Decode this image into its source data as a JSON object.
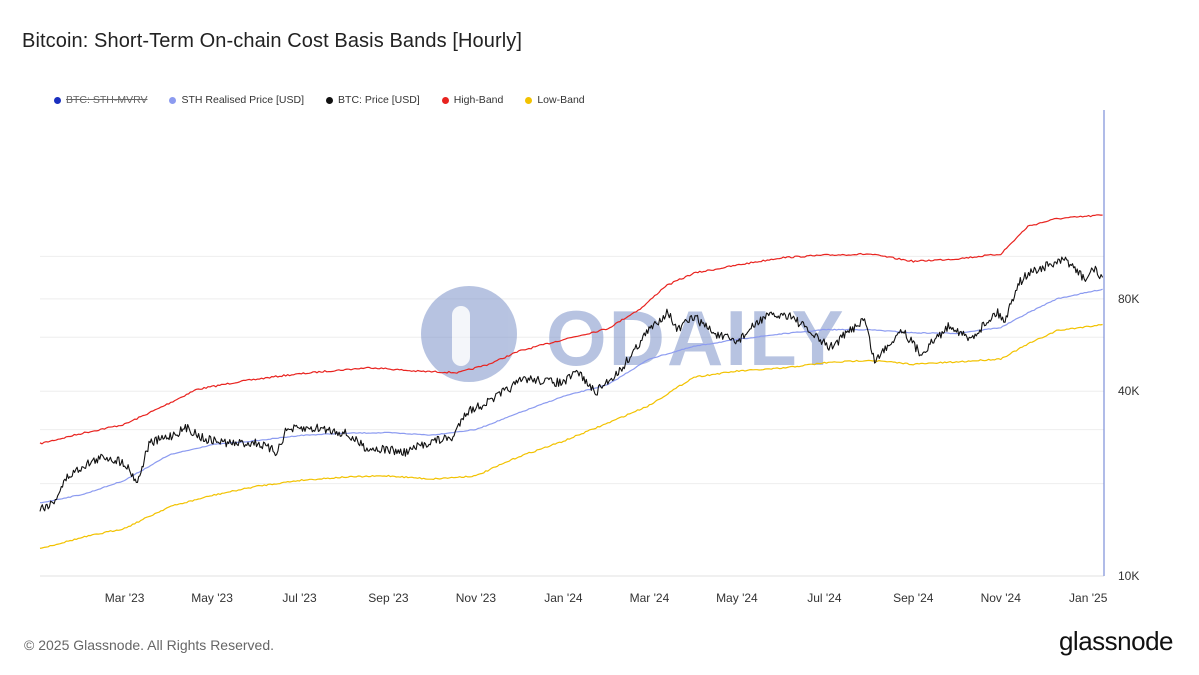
{
  "title": "Bitcoin: Short-Term On-chain Cost Basis Bands [Hourly]",
  "legend": [
    {
      "label": "BTC: STH-MVRV",
      "color": "#1a2fbf",
      "active": false
    },
    {
      "label": "STH Realised Price [USD]",
      "color": "#8c9bf0",
      "active": true
    },
    {
      "label": "BTC: Price [USD]",
      "color": "#111111",
      "active": true
    },
    {
      "label": "High-Band",
      "color": "#e8231f",
      "active": true
    },
    {
      "label": "Low-Band",
      "color": "#f2c200",
      "active": true
    }
  ],
  "watermark": "ODAILY",
  "footer": {
    "copyright": "© 2025 Glassnode. All Rights Reserved.",
    "brand": "glassnode"
  },
  "chart_data": {
    "type": "line",
    "title": "Bitcoin: Short-Term On-chain Cost Basis Bands [Hourly]",
    "y_scale": "log",
    "y_ticks": [
      {
        "value": 10000,
        "label": "10K"
      },
      {
        "value": 40000,
        "label": "40K"
      },
      {
        "value": 80000,
        "label": "80K"
      }
    ],
    "x_range": [
      "2023-01-01",
      "2025-01-12"
    ],
    "y_range": [
      10000,
      330000
    ],
    "x_ticks": [
      {
        "date": "2023-03-01",
        "label": "Mar '23"
      },
      {
        "date": "2023-05-01",
        "label": "May '23"
      },
      {
        "date": "2023-07-01",
        "label": "Jul '23"
      },
      {
        "date": "2023-09-01",
        "label": "Sep '23"
      },
      {
        "date": "2023-11-01",
        "label": "Nov '23"
      },
      {
        "date": "2024-01-01",
        "label": "Jan '24"
      },
      {
        "date": "2024-03-01",
        "label": "Mar '24"
      },
      {
        "date": "2024-05-01",
        "label": "May '24"
      },
      {
        "date": "2024-07-01",
        "label": "Jul '24"
      },
      {
        "date": "2024-09-01",
        "label": "Sep '24"
      },
      {
        "date": "2024-11-01",
        "label": "Nov '24"
      },
      {
        "date": "2025-01-01",
        "label": "Jan '25"
      }
    ],
    "grid": true,
    "legend_position": "top-left",
    "series": [
      {
        "name": "High-Band",
        "color": "#e8231f",
        "points": [
          [
            "2023-01-01",
            27000
          ],
          [
            "2023-02-01",
            29300
          ],
          [
            "2023-03-01",
            31200
          ],
          [
            "2023-03-25",
            35200
          ],
          [
            "2023-04-20",
            40500
          ],
          [
            "2023-05-20",
            43000
          ],
          [
            "2023-06-20",
            45000
          ],
          [
            "2023-07-20",
            46500
          ],
          [
            "2023-08-20",
            47800
          ],
          [
            "2023-09-20",
            46500
          ],
          [
            "2023-10-20",
            46000
          ],
          [
            "2023-11-10",
            49000
          ],
          [
            "2023-12-01",
            54000
          ],
          [
            "2024-01-01",
            59000
          ],
          [
            "2024-02-01",
            64000
          ],
          [
            "2024-02-25",
            75000
          ],
          [
            "2024-03-12",
            88000
          ],
          [
            "2024-04-01",
            97000
          ],
          [
            "2024-05-01",
            103000
          ],
          [
            "2024-06-01",
            109000
          ],
          [
            "2024-07-01",
            111000
          ],
          [
            "2024-08-01",
            112000
          ],
          [
            "2024-09-01",
            106000
          ],
          [
            "2024-10-01",
            108000
          ],
          [
            "2024-11-01",
            112000
          ],
          [
            "2024-11-20",
            138000
          ],
          [
            "2024-12-10",
            146000
          ],
          [
            "2025-01-11",
            150000
          ]
        ]
      },
      {
        "name": "STH Realised Price [USD]",
        "color": "#8c9bf0",
        "points": [
          [
            "2023-01-01",
            17300
          ],
          [
            "2023-02-01",
            18500
          ],
          [
            "2023-03-01",
            20500
          ],
          [
            "2023-04-01",
            24800
          ],
          [
            "2023-05-01",
            26800
          ],
          [
            "2023-06-01",
            27600
          ],
          [
            "2023-07-01",
            28700
          ],
          [
            "2023-08-01",
            29200
          ],
          [
            "2023-09-01",
            29300
          ],
          [
            "2023-10-01",
            28800
          ],
          [
            "2023-11-01",
            30000
          ],
          [
            "2023-12-01",
            34000
          ],
          [
            "2024-01-01",
            38500
          ],
          [
            "2024-02-01",
            42000
          ],
          [
            "2024-03-01",
            51000
          ],
          [
            "2024-04-01",
            56000
          ],
          [
            "2024-05-01",
            59000
          ],
          [
            "2024-06-01",
            61500
          ],
          [
            "2024-07-01",
            63500
          ],
          [
            "2024-08-01",
            63500
          ],
          [
            "2024-09-01",
            62000
          ],
          [
            "2024-10-01",
            61800
          ],
          [
            "2024-11-01",
            64500
          ],
          [
            "2024-11-20",
            72000
          ],
          [
            "2024-12-10",
            80000
          ],
          [
            "2025-01-11",
            86000
          ]
        ]
      },
      {
        "name": "Low-Band",
        "color": "#f2c200",
        "points": [
          [
            "2023-01-01",
            12300
          ],
          [
            "2023-02-01",
            13400
          ],
          [
            "2023-03-01",
            14300
          ],
          [
            "2023-04-01",
            16800
          ],
          [
            "2023-05-01",
            18300
          ],
          [
            "2023-06-01",
            19600
          ],
          [
            "2023-07-01",
            20500
          ],
          [
            "2023-08-01",
            21000
          ],
          [
            "2023-09-01",
            21200
          ],
          [
            "2023-10-01",
            20700
          ],
          [
            "2023-11-01",
            21200
          ],
          [
            "2023-12-01",
            24500
          ],
          [
            "2024-01-01",
            27500
          ],
          [
            "2024-02-01",
            31500
          ],
          [
            "2024-03-01",
            36000
          ],
          [
            "2024-04-01",
            44500
          ],
          [
            "2024-05-01",
            46500
          ],
          [
            "2024-06-01",
            47500
          ],
          [
            "2024-07-01",
            49500
          ],
          [
            "2024-08-01",
            50500
          ],
          [
            "2024-09-01",
            49000
          ],
          [
            "2024-10-01",
            49800
          ],
          [
            "2024-11-01",
            51000
          ],
          [
            "2024-11-20",
            57000
          ],
          [
            "2024-12-10",
            63000
          ],
          [
            "2025-01-11",
            66000
          ]
        ]
      },
      {
        "name": "BTC: Price [USD]",
        "color": "#111111",
        "points": [
          [
            "2023-01-01",
            16600
          ],
          [
            "2023-01-10",
            17300
          ],
          [
            "2023-01-20",
            21000
          ],
          [
            "2023-02-01",
            23000
          ],
          [
            "2023-02-15",
            24500
          ],
          [
            "2023-03-01",
            23400
          ],
          [
            "2023-03-10",
            20200
          ],
          [
            "2023-03-18",
            27000
          ],
          [
            "2023-04-01",
            28500
          ],
          [
            "2023-04-14",
            30400
          ],
          [
            "2023-04-25",
            28000
          ],
          [
            "2023-05-15",
            27000
          ],
          [
            "2023-06-01",
            27200
          ],
          [
            "2023-06-15",
            25300
          ],
          [
            "2023-06-22",
            30000
          ],
          [
            "2023-07-15",
            30300
          ],
          [
            "2023-08-01",
            29300
          ],
          [
            "2023-08-17",
            26100
          ],
          [
            "2023-09-01",
            25800
          ],
          [
            "2023-09-12",
            25200
          ],
          [
            "2023-10-01",
            27500
          ],
          [
            "2023-10-16",
            28200
          ],
          [
            "2023-10-24",
            34000
          ],
          [
            "2023-11-10",
            37000
          ],
          [
            "2023-12-05",
            44000
          ],
          [
            "2024-01-01",
            42500
          ],
          [
            "2024-01-11",
            46500
          ],
          [
            "2024-01-23",
            39500
          ],
          [
            "2024-02-10",
            47000
          ],
          [
            "2024-02-28",
            62000
          ],
          [
            "2024-03-14",
            73000
          ],
          [
            "2024-03-20",
            63000
          ],
          [
            "2024-04-01",
            70000
          ],
          [
            "2024-04-17",
            61000
          ],
          [
            "2024-05-01",
            58000
          ],
          [
            "2024-05-20",
            70000
          ],
          [
            "2024-06-07",
            71000
          ],
          [
            "2024-06-24",
            60500
          ],
          [
            "2024-07-05",
            55500
          ],
          [
            "2024-07-29",
            69000
          ],
          [
            "2024-08-05",
            50000
          ],
          [
            "2024-08-24",
            64000
          ],
          [
            "2024-09-06",
            53000
          ],
          [
            "2024-09-27",
            66000
          ],
          [
            "2024-10-10",
            58800
          ],
          [
            "2024-10-29",
            72500
          ],
          [
            "2024-11-04",
            68000
          ],
          [
            "2024-11-13",
            90000
          ],
          [
            "2024-11-22",
            98000
          ],
          [
            "2024-12-05",
            103000
          ],
          [
            "2024-12-17",
            107000
          ],
          [
            "2024-12-30",
            92000
          ],
          [
            "2025-01-06",
            102000
          ],
          [
            "2025-01-09",
            92500
          ],
          [
            "2025-01-11",
            94000
          ]
        ]
      }
    ]
  }
}
